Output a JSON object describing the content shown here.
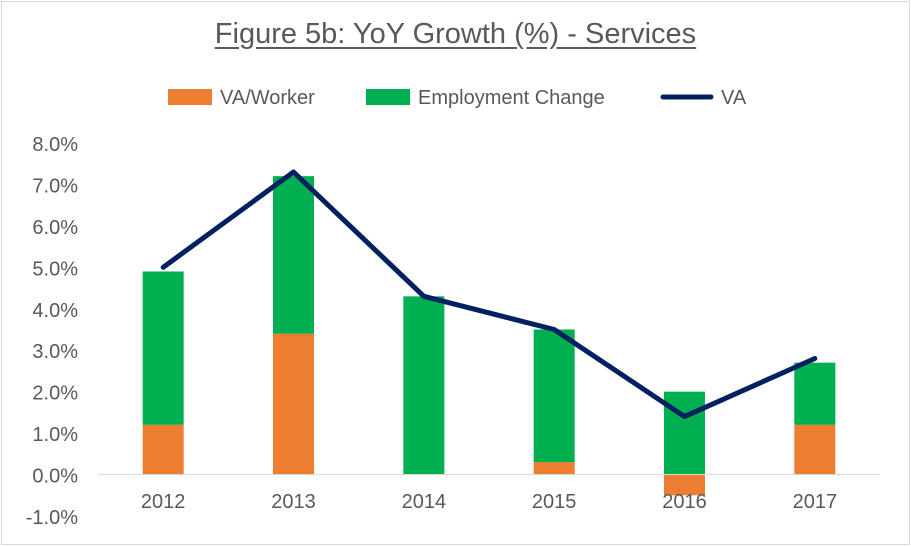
{
  "chart_data": {
    "type": "bar",
    "title": "Figure 5b: YoY Growth (%) - Services",
    "categories": [
      "2012",
      "2013",
      "2014",
      "2015",
      "2016",
      "2017"
    ],
    "series": [
      {
        "name": "VA/Worker",
        "kind": "stacked-bar",
        "color": "#ed7d31",
        "values": [
          1.2,
          3.4,
          0.0,
          0.3,
          -0.5,
          1.2
        ]
      },
      {
        "name": "Employment Change",
        "kind": "stacked-bar",
        "color": "#00b050",
        "values": [
          3.7,
          3.8,
          4.3,
          3.2,
          2.0,
          1.5
        ]
      },
      {
        "name": "VA",
        "kind": "line",
        "color": "#002060",
        "values": [
          5.0,
          7.3,
          4.3,
          3.5,
          1.4,
          2.8
        ]
      }
    ],
    "y_ticks": [
      "8.0%",
      "7.0%",
      "6.0%",
      "5.0%",
      "4.0%",
      "3.0%",
      "2.0%",
      "1.0%",
      "0.0%",
      "-1.0%"
    ],
    "ylim": [
      -1,
      8
    ],
    "legend_position": "top",
    "grid": false
  }
}
